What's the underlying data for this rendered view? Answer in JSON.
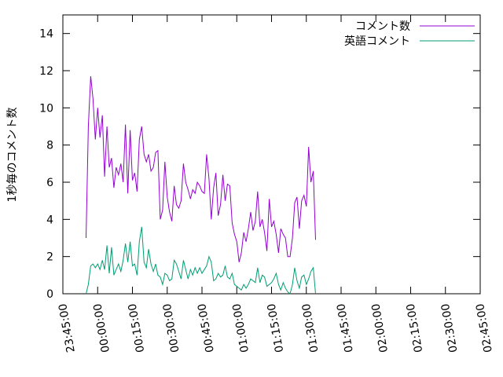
{
  "chart_data": {
    "type": "line",
    "title": "",
    "xlabel": "",
    "ylabel": "1秒毎のコメント数",
    "ylim": [
      0,
      15
    ],
    "xlim_seconds_relative": "",
    "yticks": [
      0,
      2,
      4,
      6,
      8,
      10,
      12,
      14
    ],
    "xticks": [
      "23:45:00",
      "00:00:00",
      "00:15:00",
      "00:30:00",
      "00:45:00",
      "01:00:00",
      "01:15:00",
      "01:30:00",
      "01:45:00",
      "02:00:00",
      "02:15:00",
      "02:30:00",
      "02:45:00"
    ],
    "legend_position": "top-right",
    "grid": false,
    "series": [
      {
        "name": "コメント数",
        "color": "#9400d3",
        "x_start": "23:55:00",
        "x_step_minutes": 1,
        "values": [
          3.0,
          9.0,
          11.7,
          10.5,
          8.3,
          10.0,
          8.4,
          9.6,
          6.3,
          9.0,
          6.8,
          7.3,
          5.7,
          6.8,
          6.4,
          7.0,
          6.0,
          9.1,
          5.4,
          8.8,
          6.1,
          6.5,
          5.5,
          8.3,
          9.0,
          7.5,
          7.1,
          7.5,
          6.6,
          6.8,
          7.6,
          7.7,
          4.0,
          4.5,
          7.1,
          5.2,
          4.4,
          3.9,
          5.8,
          4.8,
          4.6,
          5.0,
          7.0,
          6.0,
          5.6,
          5.1,
          5.6,
          5.4,
          6.0,
          5.8,
          5.5,
          5.4,
          7.5,
          6.2,
          4.0,
          5.7,
          6.5,
          4.2,
          4.8,
          6.4,
          5.0,
          5.9,
          5.8,
          3.8,
          3.2,
          2.8,
          1.7,
          2.2,
          3.3,
          2.8,
          3.5,
          4.4,
          3.4,
          3.9,
          5.5,
          3.6,
          4.0,
          3.3,
          2.3,
          5.1,
          3.6,
          3.9,
          3.2,
          2.2,
          3.5,
          3.2,
          3.0,
          2.0,
          2.0,
          3.0,
          4.9,
          5.2,
          3.5,
          5.0,
          5.3,
          4.7,
          7.9,
          6.0,
          6.6,
          2.9
        ]
      },
      {
        "name": "英語コメント",
        "color": "#009e73",
        "x_start": "23:55:00",
        "x_step_minutes": 1,
        "values": [
          0.0,
          0.5,
          1.5,
          1.6,
          1.4,
          1.6,
          1.3,
          1.8,
          1.3,
          2.6,
          1.1,
          2.5,
          1.0,
          1.3,
          1.6,
          1.2,
          1.8,
          2.7,
          1.7,
          2.8,
          1.5,
          1.6,
          1.0,
          2.8,
          3.6,
          1.7,
          1.4,
          2.4,
          1.6,
          1.2,
          1.6,
          1.0,
          0.9,
          0.5,
          1.1,
          1.0,
          0.7,
          0.8,
          1.8,
          1.6,
          1.2,
          0.8,
          1.8,
          1.3,
          0.8,
          1.3,
          1.0,
          1.4,
          1.1,
          1.4,
          1.1,
          1.3,
          1.5,
          2.0,
          1.7,
          0.7,
          0.8,
          1.1,
          0.9,
          1.0,
          1.5,
          0.9,
          0.8,
          1.1,
          0.5,
          0.4,
          0.3,
          0.2,
          0.5,
          0.3,
          0.5,
          0.8,
          0.7,
          0.6,
          1.4,
          0.6,
          1.0,
          0.9,
          0.4,
          0.5,
          0.6,
          0.8,
          1.1,
          0.5,
          0.2,
          0.6,
          0.3,
          0.1,
          0.0,
          0.5,
          1.4,
          0.7,
          0.3,
          0.9,
          1.0,
          0.5,
          0.8,
          1.2,
          1.4,
          0.0
        ]
      }
    ]
  }
}
